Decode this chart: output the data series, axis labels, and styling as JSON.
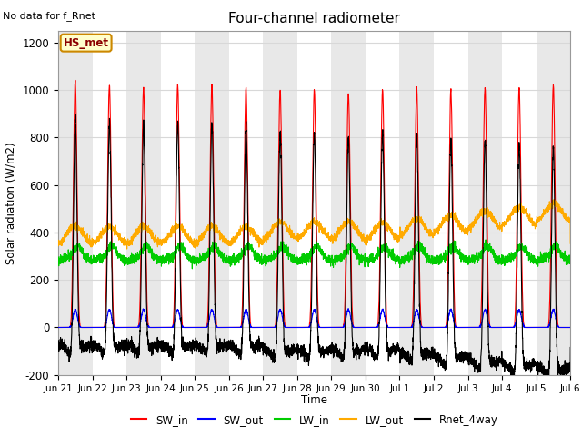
{
  "title": "Four-channel radiometer",
  "top_left_note": "No data for f_Rnet",
  "ylabel": "Solar radiation (W/m2)",
  "xlabel": "Time",
  "ylim": [
    -200,
    1250
  ],
  "yticks": [
    -200,
    0,
    200,
    400,
    600,
    800,
    1000,
    1200
  ],
  "legend_label": "HS_met",
  "legend_items": [
    "SW_in",
    "SW_out",
    "LW_in",
    "LW_out",
    "Rnet_4way"
  ],
  "legend_colors": [
    "#ff0000",
    "#0000ff",
    "#00cc00",
    "#ffaa00",
    "#000000"
  ],
  "bg_color": "#ffffff",
  "plot_bg_color": "#ffffff",
  "grid_color": "#d8d8d8",
  "band_color": "#e8e8e8",
  "num_days": 15,
  "xtick_labels": [
    "Jun 21",
    "Jun 22",
    "Jun 23",
    "Jun 24",
    "Jun 25",
    "Jun 26",
    "Jun 27",
    "Jun 28",
    "Jun 29",
    "Jun 30",
    "Jul 1",
    "Jul 2",
    "Jul 3",
    "Jul 4",
    "Jul 5",
    "Jul 6"
  ]
}
